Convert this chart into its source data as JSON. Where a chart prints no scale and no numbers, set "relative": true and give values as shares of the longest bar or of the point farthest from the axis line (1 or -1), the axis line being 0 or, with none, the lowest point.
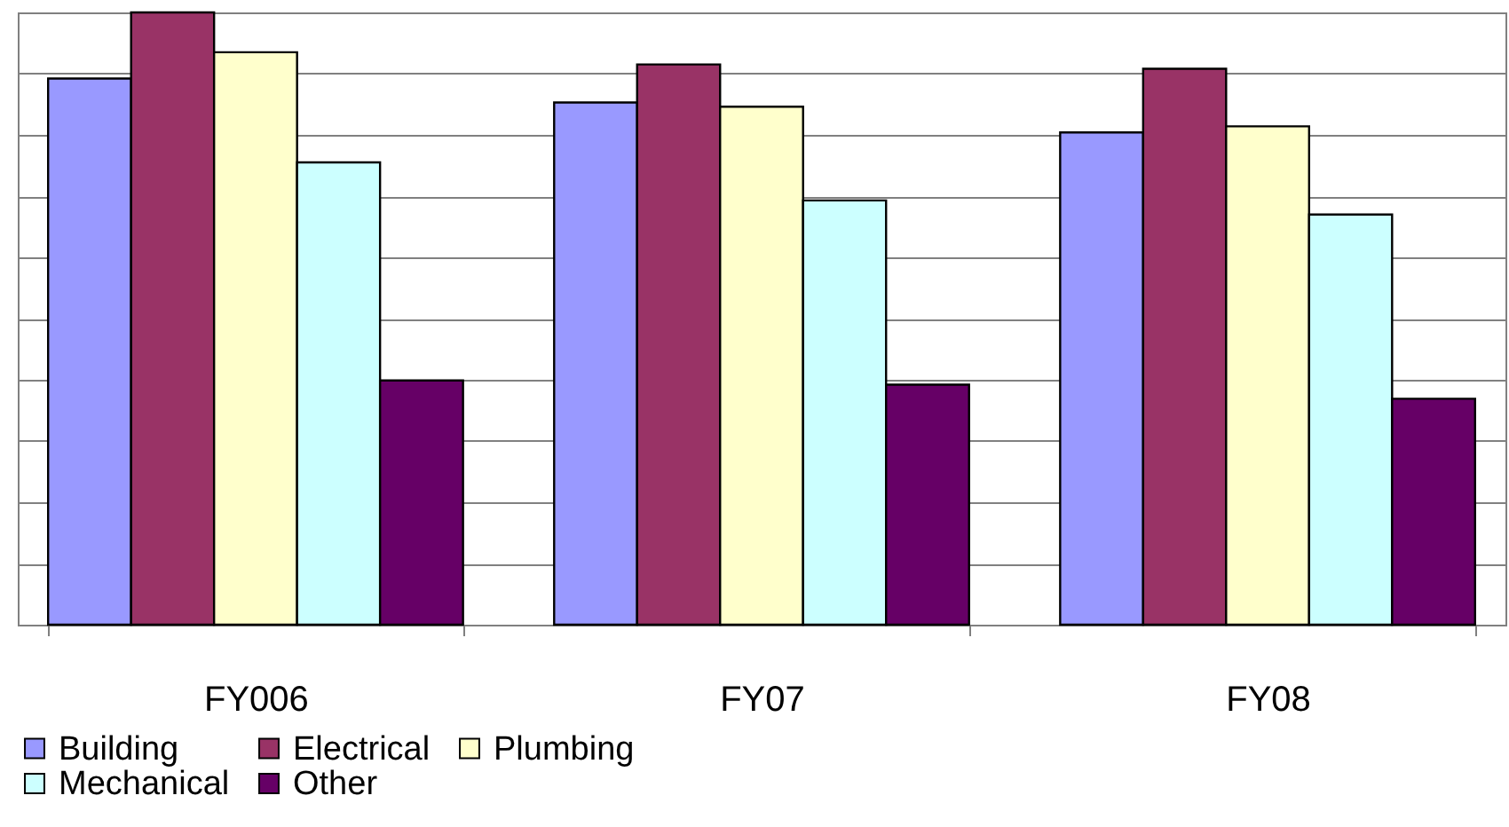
{
  "chart_data": {
    "type": "bar",
    "relative": true,
    "categories": [
      "FY006",
      "FY07",
      "FY08"
    ],
    "series": [
      {
        "name": "Building",
        "color": "#9999ff",
        "values": [
          0.892,
          0.853,
          0.804
        ]
      },
      {
        "name": "Electrical",
        "color": "#993366",
        "values": [
          1,
          0.915,
          0.908
        ]
      },
      {
        "name": "Plumbing",
        "color": "#ffffcc",
        "values": [
          0.935,
          0.846,
          0.814
        ]
      },
      {
        "name": "Mechanical",
        "color": "#ccffff",
        "values": [
          0.755,
          0.693,
          0.67
        ]
      },
      {
        "name": "Other",
        "color": "#660066",
        "values": [
          0.399,
          0.392,
          0.369
        ]
      }
    ],
    "grid": "y",
    "legend": "bottom"
  }
}
